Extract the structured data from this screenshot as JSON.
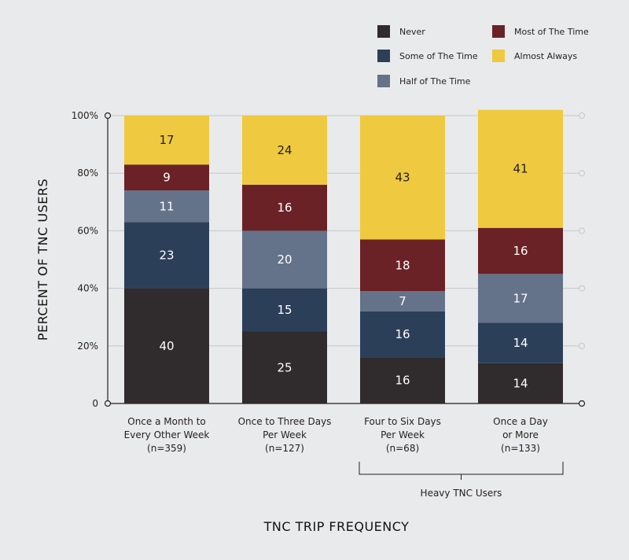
{
  "chart_data": {
    "type": "bar",
    "stacked": true,
    "categories": [
      [
        "Once a Month to",
        "Every Other Week",
        "(n=359)"
      ],
      [
        "Once to Three Days",
        "Per Week",
        "(n=127)"
      ],
      [
        "Four to Six Days",
        "Per Week",
        "(n=68)"
      ],
      [
        "Once a Day",
        "or More",
        "(n=133)"
      ]
    ],
    "series": [
      {
        "name": "Never",
        "color": "#302b2c",
        "label_color": "#ffffff",
        "values": [
          40,
          25,
          16,
          14
        ]
      },
      {
        "name": "Some of The Time",
        "color": "#2c3f59",
        "label_color": "#ffffff",
        "values": [
          23,
          15,
          16,
          14
        ]
      },
      {
        "name": "Half of The Time",
        "color": "#647389",
        "label_color": "#ffffff",
        "values": [
          11,
          20,
          7,
          17
        ]
      },
      {
        "name": "Most of The Time",
        "color": "#6b2226",
        "label_color": "#ffffff",
        "values": [
          9,
          16,
          18,
          16
        ]
      },
      {
        "name": "Almost Always",
        "color": "#efc940",
        "label_color": "#231f20",
        "values": [
          17,
          24,
          43,
          41
        ]
      }
    ],
    "legend_columns": [
      [
        "Never",
        "Some of The Time",
        "Half of The Time"
      ],
      [
        "Most of The Time",
        "Almost Always"
      ]
    ],
    "legend_position": "top-right",
    "ylabel": "PERCENT OF TNC USERS",
    "xlabel": "TNC TRIP FREQUENCY",
    "ylim": [
      0,
      100
    ],
    "yticks": [
      {
        "value": 0,
        "label": "0"
      },
      {
        "value": 20,
        "label": "20%"
      },
      {
        "value": 40,
        "label": "40%"
      },
      {
        "value": 60,
        "label": "60%"
      },
      {
        "value": 80,
        "label": "80%"
      },
      {
        "value": 100,
        "label": "100%"
      }
    ],
    "grid": true,
    "bracket": {
      "label": "Heavy TNC Users",
      "from_category": 2,
      "to_category": 3
    }
  }
}
